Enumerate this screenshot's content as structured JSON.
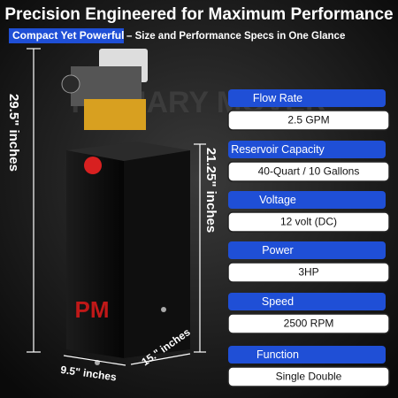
{
  "header": {
    "title": "Precision Engineered for Maximum Performance",
    "tag": "Compact Yet Powerful",
    "subtitle": "– Size and Performance Specs in One Glance"
  },
  "watermark": "PRIMARY MOVER",
  "logo": "PM",
  "dimensions": {
    "height_total": "29.5\" inches",
    "height_tank": "21.25\" inches",
    "width": "9.5\" inches",
    "depth": "15.\" inches"
  },
  "specs": [
    {
      "label": "Flow Rate",
      "value": "2.5 GPM"
    },
    {
      "label": "Reservoir Capacity",
      "value": "40-Quart / 10 Gallons"
    },
    {
      "label": "Voltage",
      "value": "12 volt (DC)"
    },
    {
      "label": "Power",
      "value": "3HP"
    },
    {
      "label": "Speed",
      "value": "2500 RPM"
    },
    {
      "label": "Function",
      "value": "Single Double"
    }
  ]
}
